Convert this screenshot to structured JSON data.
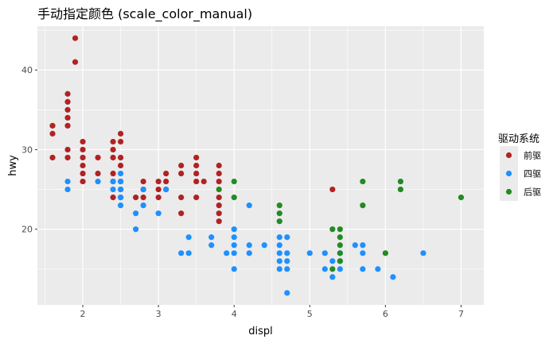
{
  "chart_data": {
    "type": "scatter",
    "title": "手动指定颜色 (scale_color_manual)",
    "xlabel": "displ",
    "ylabel": "hwy",
    "xlim": [
      1.4,
      7.3
    ],
    "ylim": [
      10.5,
      45.5
    ],
    "x_ticks": [
      2,
      3,
      4,
      5,
      6,
      7
    ],
    "y_ticks": [
      20,
      30,
      40
    ],
    "grid": true,
    "legend": {
      "title": "驱动系统",
      "position": "right"
    },
    "series": [
      {
        "name": "前驱",
        "color": "#b22222",
        "points": [
          [
            1.6,
            33
          ],
          [
            1.6,
            32
          ],
          [
            1.6,
            29
          ],
          [
            1.8,
            37
          ],
          [
            1.8,
            36
          ],
          [
            1.8,
            35
          ],
          [
            1.8,
            34
          ],
          [
            1.8,
            33
          ],
          [
            1.8,
            30
          ],
          [
            1.8,
            29
          ],
          [
            1.9,
            44
          ],
          [
            1.9,
            41
          ],
          [
            2.0,
            31
          ],
          [
            2.0,
            30
          ],
          [
            2.0,
            29
          ],
          [
            2.0,
            28
          ],
          [
            2.0,
            27
          ],
          [
            2.0,
            26
          ],
          [
            2.2,
            29
          ],
          [
            2.2,
            27
          ],
          [
            2.4,
            31
          ],
          [
            2.4,
            30
          ],
          [
            2.4,
            29
          ],
          [
            2.4,
            27
          ],
          [
            2.4,
            26
          ],
          [
            2.4,
            24
          ],
          [
            2.5,
            32
          ],
          [
            2.5,
            31
          ],
          [
            2.5,
            29
          ],
          [
            2.5,
            28
          ],
          [
            2.5,
            26
          ],
          [
            2.5,
            25
          ],
          [
            2.5,
            24
          ],
          [
            2.7,
            24
          ],
          [
            2.8,
            26
          ],
          [
            2.8,
            25
          ],
          [
            2.8,
            24
          ],
          [
            3.0,
            26
          ],
          [
            3.0,
            25
          ],
          [
            3.0,
            24
          ],
          [
            3.1,
            27
          ],
          [
            3.1,
            26
          ],
          [
            3.1,
            25
          ],
          [
            3.3,
            28
          ],
          [
            3.3,
            27
          ],
          [
            3.3,
            24
          ],
          [
            3.3,
            22
          ],
          [
            3.5,
            29
          ],
          [
            3.5,
            28
          ],
          [
            3.5,
            27
          ],
          [
            3.5,
            26
          ],
          [
            3.5,
            24
          ],
          [
            3.6,
            26
          ],
          [
            3.8,
            28
          ],
          [
            3.8,
            27
          ],
          [
            3.8,
            26
          ],
          [
            3.8,
            24
          ],
          [
            3.8,
            23
          ],
          [
            3.8,
            22
          ],
          [
            3.8,
            21
          ],
          [
            5.3,
            25
          ]
        ]
      },
      {
        "name": "四驱",
        "color": "#1e90ff",
        "points": [
          [
            1.8,
            26
          ],
          [
            1.8,
            25
          ],
          [
            2.2,
            26
          ],
          [
            2.4,
            26
          ],
          [
            2.4,
            25
          ],
          [
            2.5,
            27
          ],
          [
            2.5,
            26
          ],
          [
            2.5,
            25
          ],
          [
            2.5,
            24
          ],
          [
            2.5,
            23
          ],
          [
            2.7,
            22
          ],
          [
            2.7,
            20
          ],
          [
            2.8,
            25
          ],
          [
            2.8,
            23
          ],
          [
            3.0,
            22
          ],
          [
            3.1,
            25
          ],
          [
            3.3,
            17
          ],
          [
            3.4,
            19
          ],
          [
            3.4,
            17
          ],
          [
            3.7,
            19
          ],
          [
            3.7,
            18
          ],
          [
            3.9,
            17
          ],
          [
            4.0,
            20
          ],
          [
            4.0,
            19
          ],
          [
            4.0,
            18
          ],
          [
            4.0,
            17
          ],
          [
            4.0,
            15
          ],
          [
            4.2,
            23
          ],
          [
            4.2,
            18
          ],
          [
            4.2,
            17
          ],
          [
            4.4,
            18
          ],
          [
            4.6,
            19
          ],
          [
            4.6,
            18
          ],
          [
            4.6,
            17
          ],
          [
            4.6,
            16
          ],
          [
            4.6,
            15
          ],
          [
            4.7,
            19
          ],
          [
            4.7,
            17
          ],
          [
            4.7,
            16
          ],
          [
            4.7,
            15
          ],
          [
            4.7,
            12
          ],
          [
            5.0,
            17
          ],
          [
            5.2,
            17
          ],
          [
            5.2,
            15
          ],
          [
            5.3,
            16
          ],
          [
            5.3,
            14
          ],
          [
            5.4,
            17
          ],
          [
            5.4,
            16
          ],
          [
            5.4,
            15
          ],
          [
            5.6,
            18
          ],
          [
            5.7,
            18
          ],
          [
            5.7,
            17
          ],
          [
            5.7,
            15
          ],
          [
            5.9,
            15
          ],
          [
            6.1,
            14
          ],
          [
            6.5,
            17
          ]
        ]
      },
      {
        "name": "后驱",
        "color": "#228b22",
        "points": [
          [
            3.8,
            25
          ],
          [
            4.0,
            26
          ],
          [
            4.0,
            24
          ],
          [
            4.6,
            23
          ],
          [
            4.6,
            22
          ],
          [
            4.6,
            21
          ],
          [
            5.3,
            20
          ],
          [
            5.3,
            15
          ],
          [
            5.4,
            20
          ],
          [
            5.4,
            19
          ],
          [
            5.4,
            18
          ],
          [
            5.4,
            17
          ],
          [
            5.4,
            16
          ],
          [
            5.7,
            26
          ],
          [
            5.7,
            23
          ],
          [
            6.0,
            17
          ],
          [
            6.2,
            26
          ],
          [
            6.2,
            25
          ],
          [
            7.0,
            24
          ]
        ]
      }
    ]
  }
}
